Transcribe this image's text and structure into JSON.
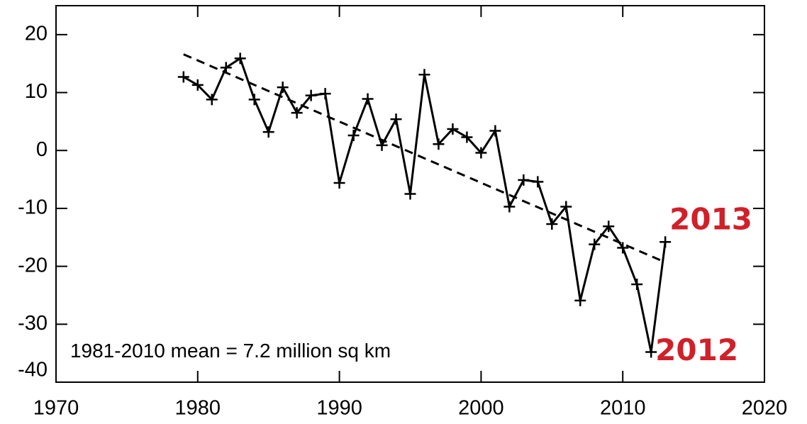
{
  "chart_data": {
    "type": "line",
    "x": [
      1979,
      1980,
      1981,
      1982,
      1983,
      1984,
      1985,
      1986,
      1987,
      1988,
      1989,
      1990,
      1991,
      1992,
      1993,
      1994,
      1995,
      1996,
      1997,
      1998,
      1999,
      2000,
      2001,
      2002,
      2003,
      2004,
      2005,
      2006,
      2007,
      2008,
      2009,
      2010,
      2011,
      2012,
      2013
    ],
    "series": [
      {
        "color": "#000000",
        "marker": "plus",
        "dash": false,
        "x": [
          1979,
          1980,
          1981,
          1982,
          1983,
          1984,
          1985,
          1986,
          1987,
          1988,
          1989,
          1990,
          1991,
          1992,
          1993,
          1994,
          1995,
          1996,
          1997,
          1998,
          1999,
          2000,
          2001,
          2002,
          2003,
          2004,
          2005,
          2006,
          2007,
          2008,
          2009,
          2010,
          2011,
          2012,
          2013
        ],
        "values": [
          12.7,
          11.3,
          8.8,
          14.3,
          15.9,
          8.8,
          3.2,
          10.9,
          6.5,
          9.5,
          9.8,
          -5.6,
          2.6,
          8.9,
          0.9,
          5.4,
          -7.5,
          13.1,
          1.1,
          3.7,
          2.3,
          -0.4,
          3.4,
          -9.7,
          -5.1,
          -5.4,
          -12.7,
          -9.7,
          -25.9,
          -16.2,
          -13.1,
          -16.8,
          -23.1,
          -34.8,
          -15.8
        ]
      },
      {
        "color": "#000000",
        "marker": "none",
        "dash": true,
        "x": [
          1979,
          2013
        ],
        "values": [
          16.6,
          -19.3
        ]
      }
    ],
    "xlim": [
      1970,
      2020
    ],
    "xticks": [
      1970,
      1980,
      1990,
      2000,
      2010,
      2020
    ],
    "ylim": [
      -40,
      25
    ],
    "yticks": [
      -40,
      -30,
      -20,
      -10,
      0,
      10,
      20
    ],
    "grid": false,
    "annotations": [
      {
        "text": "2013",
        "x": 2013,
        "y": -12.2,
        "color": "#d0202a"
      },
      {
        "text": "2012",
        "x": 2012,
        "y": -34.8,
        "color": "#d0202a"
      },
      {
        "text": "1981-2010 mean =   7.2 million sq km",
        "x": 1971,
        "y": -34.8,
        "color": "#000000"
      }
    ]
  }
}
